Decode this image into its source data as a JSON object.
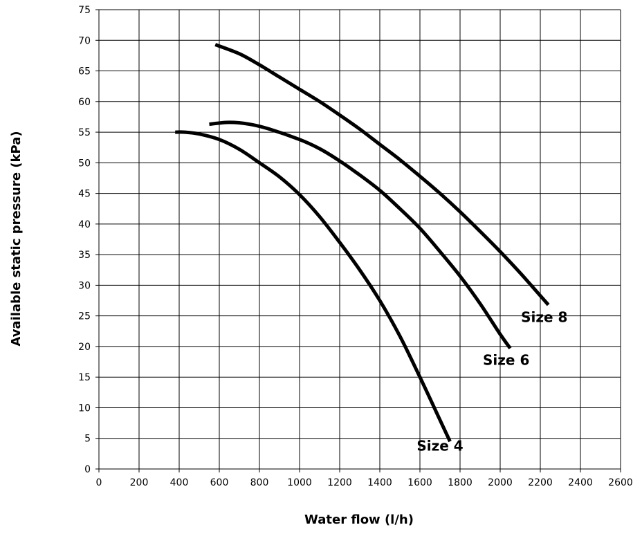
{
  "chart_data": {
    "type": "line",
    "xlabel": "Water flow (l/h)",
    "ylabel": "Available static pressure (kPa)",
    "xlim": [
      0,
      2600
    ],
    "ylim": [
      0,
      75
    ],
    "x_ticks": [
      0,
      200,
      400,
      600,
      800,
      1000,
      1200,
      1400,
      1600,
      1800,
      2000,
      2200,
      2400,
      2600
    ],
    "y_ticks": [
      0,
      5,
      10,
      15,
      20,
      25,
      30,
      35,
      40,
      45,
      50,
      55,
      60,
      65,
      70,
      75
    ],
    "grid": true,
    "legend": "none",
    "series": [
      {
        "name": "Size 4",
        "points": [
          [
            380,
            55
          ],
          [
            430,
            55
          ],
          [
            500,
            54.7
          ],
          [
            600,
            53.8
          ],
          [
            700,
            52.2
          ],
          [
            800,
            50
          ],
          [
            900,
            47.7
          ],
          [
            1000,
            44.8
          ],
          [
            1100,
            41.2
          ],
          [
            1200,
            37
          ],
          [
            1300,
            32.5
          ],
          [
            1400,
            27.5
          ],
          [
            1500,
            21.7
          ],
          [
            1600,
            15
          ],
          [
            1700,
            8
          ],
          [
            1750,
            4.5
          ]
        ]
      },
      {
        "name": "Size 6",
        "points": [
          [
            550,
            56.3
          ],
          [
            650,
            56.6
          ],
          [
            750,
            56.3
          ],
          [
            850,
            55.5
          ],
          [
            1000,
            53.8
          ],
          [
            1100,
            52.3
          ],
          [
            1200,
            50.3
          ],
          [
            1300,
            48
          ],
          [
            1400,
            45.5
          ],
          [
            1500,
            42.5
          ],
          [
            1600,
            39.3
          ],
          [
            1700,
            35.5
          ],
          [
            1800,
            31.5
          ],
          [
            1900,
            27
          ],
          [
            2000,
            22
          ],
          [
            2050,
            19.7
          ]
        ]
      },
      {
        "name": "Size 8",
        "points": [
          [
            580,
            69.3
          ],
          [
            700,
            67.8
          ],
          [
            800,
            66
          ],
          [
            900,
            64
          ],
          [
            1000,
            62
          ],
          [
            1100,
            60
          ],
          [
            1200,
            57.8
          ],
          [
            1300,
            55.5
          ],
          [
            1400,
            53
          ],
          [
            1500,
            50.5
          ],
          [
            1600,
            47.8
          ],
          [
            1700,
            45
          ],
          [
            1800,
            42
          ],
          [
            1900,
            38.8
          ],
          [
            2000,
            35.5
          ],
          [
            2100,
            32
          ],
          [
            2200,
            28.3
          ],
          [
            2240,
            26.8
          ]
        ]
      }
    ],
    "series_labels": [
      {
        "text": "Size 4",
        "x": 1700,
        "y": 3
      },
      {
        "text": "Size 6",
        "x": 2030,
        "y": 17
      },
      {
        "text": "Size 8",
        "x": 2220,
        "y": 24
      }
    ]
  }
}
